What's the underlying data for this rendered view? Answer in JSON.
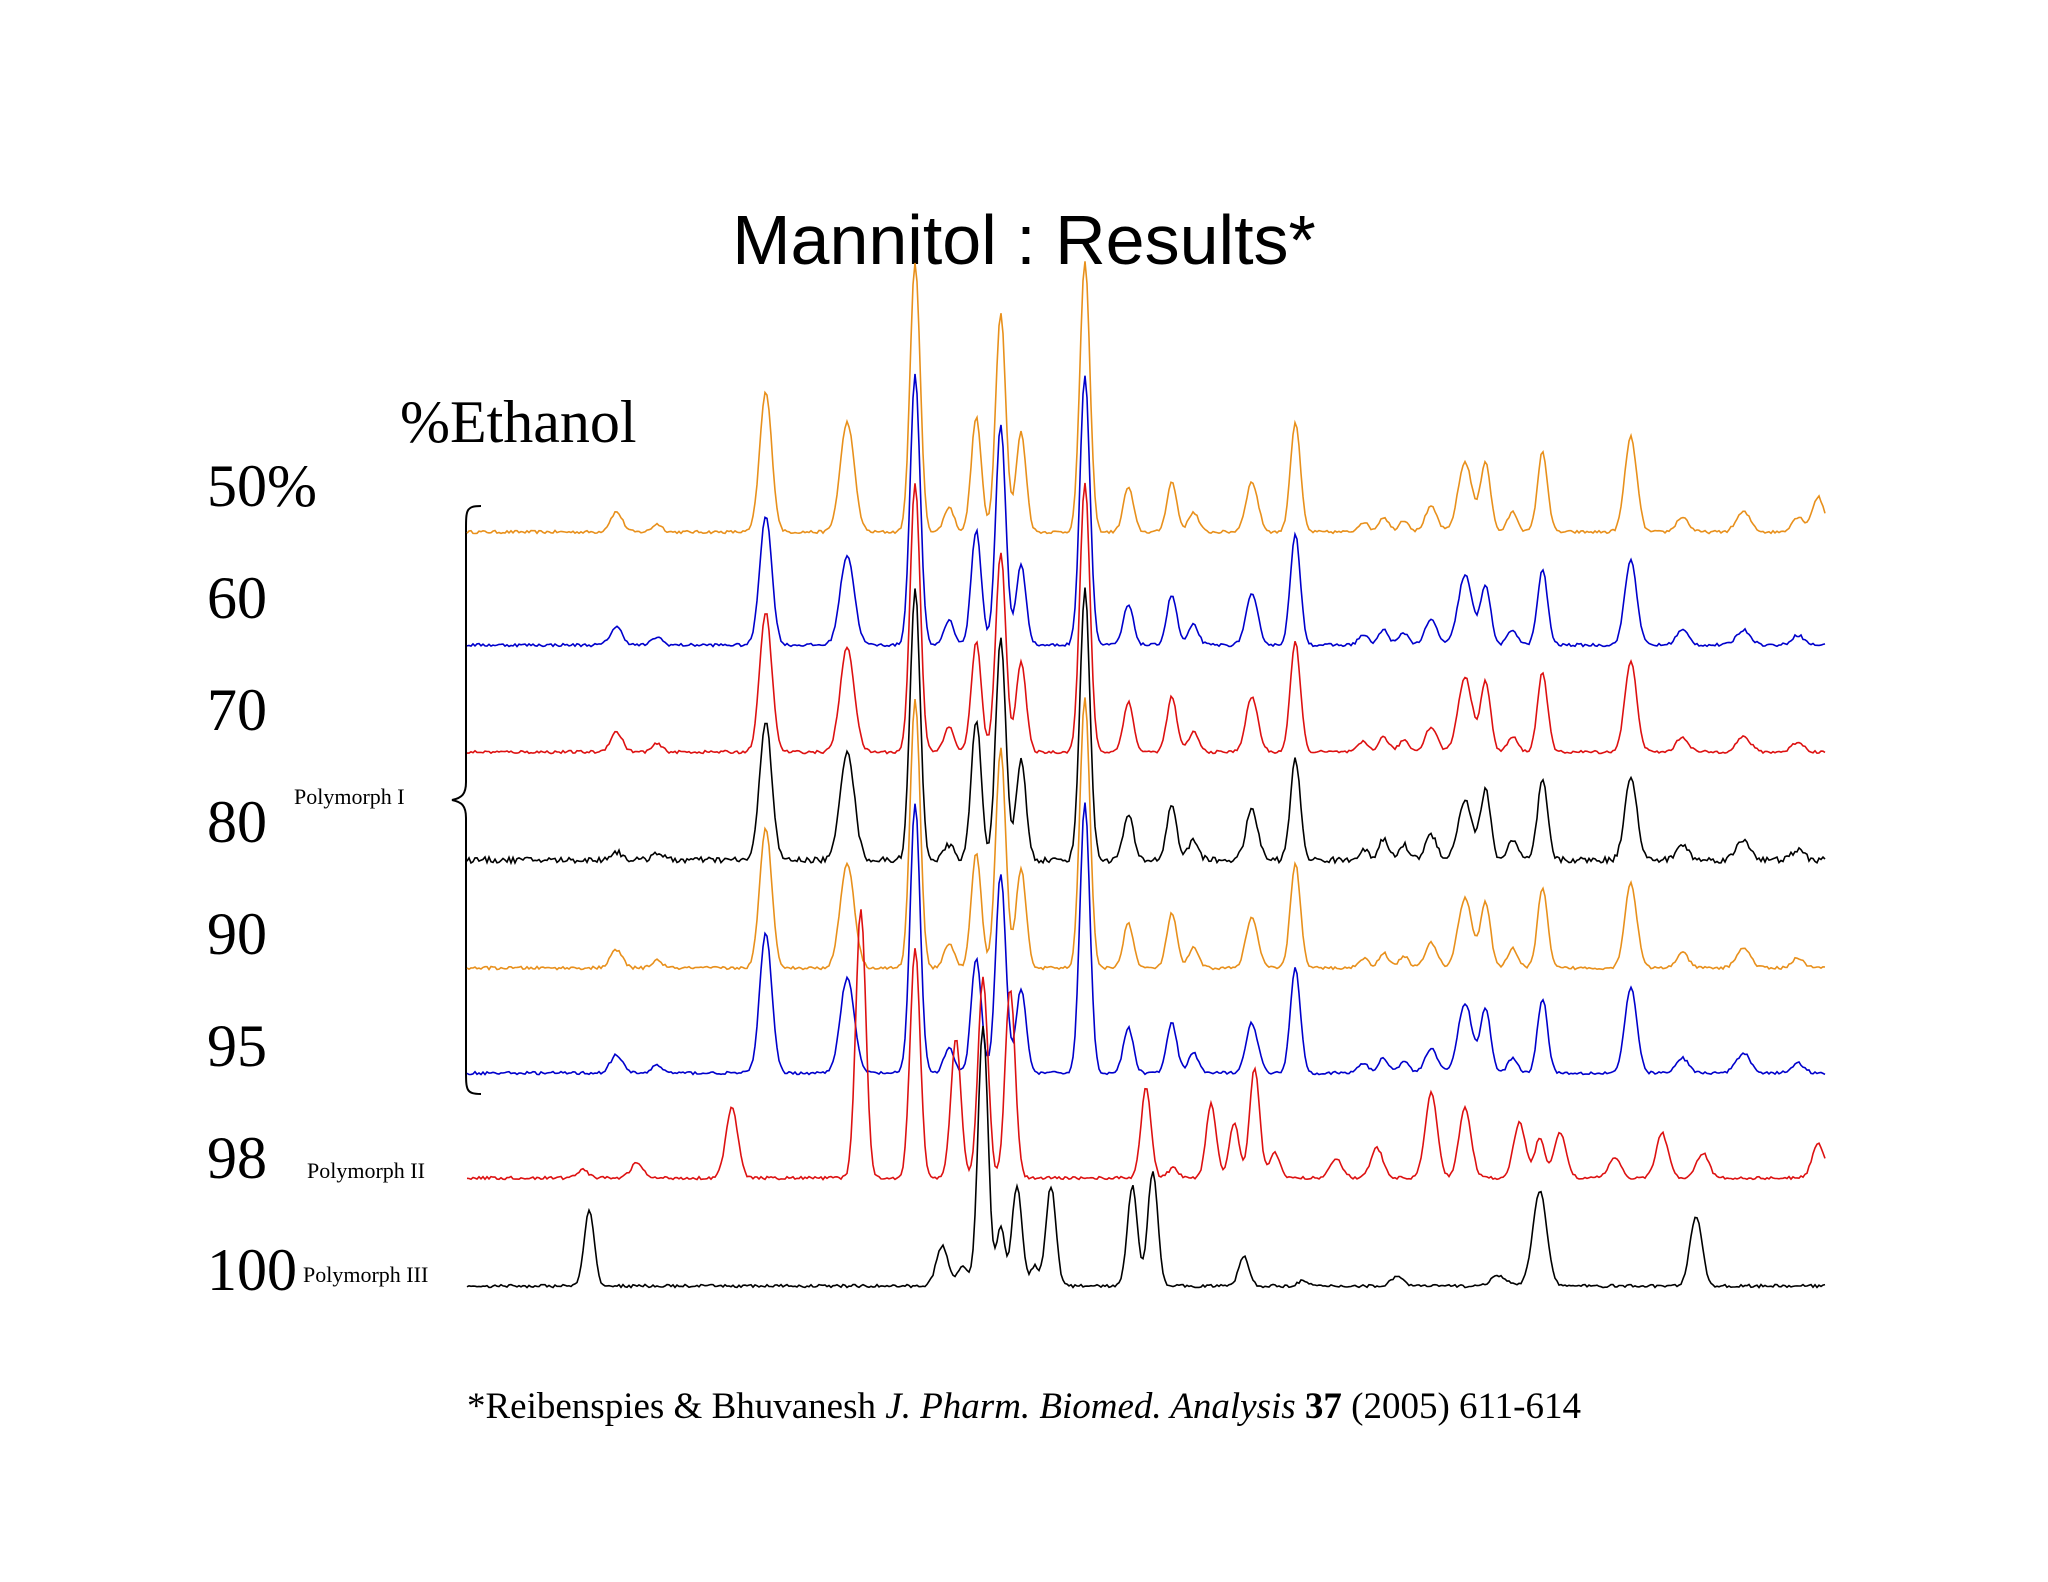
{
  "title": "Mannitol : Results*",
  "ethanol_label": "%Ethanol",
  "citation": {
    "authors": "*Reibenspies & Bhuvanesh",
    "journal": "J. Pharm. Biomed. Analysis",
    "volume": "37",
    "details": "(2005) 611-614"
  },
  "colors": {
    "orange": "#E8901C",
    "blue": "#0000CC",
    "red": "#DD1111",
    "black": "#000000"
  },
  "chart_data": {
    "type": "line",
    "title": "Mannitol : Results*",
    "xlabel": "",
    "ylabel": "",
    "grid": false,
    "legend": "none",
    "group_brace": {
      "label": "Polymorph I",
      "series": [
        "50%",
        "60",
        "70",
        "80",
        "90",
        "95"
      ]
    },
    "series": [
      {
        "label": "50%",
        "polymorph": "",
        "color": "orange",
        "noise": 1.5,
        "peaks": [
          [
            0.11,
            20,
            6
          ],
          [
            0.14,
            8,
            5
          ],
          [
            0.22,
            140,
            6
          ],
          [
            0.28,
            110,
            7
          ],
          [
            0.33,
            270,
            5
          ],
          [
            0.355,
            25,
            5
          ],
          [
            0.375,
            115,
            5
          ],
          [
            0.393,
            220,
            5
          ],
          [
            0.408,
            100,
            5
          ],
          [
            0.455,
            270,
            5
          ],
          [
            0.487,
            45,
            5
          ],
          [
            0.519,
            50,
            5
          ],
          [
            0.535,
            20,
            5
          ],
          [
            0.578,
            50,
            6
          ],
          [
            0.61,
            110,
            5
          ],
          [
            0.66,
            10,
            5
          ],
          [
            0.675,
            15,
            5
          ],
          [
            0.69,
            12,
            5
          ],
          [
            0.71,
            25,
            6
          ],
          [
            0.735,
            70,
            7
          ],
          [
            0.75,
            70,
            5
          ],
          [
            0.77,
            20,
            5
          ],
          [
            0.792,
            80,
            5
          ],
          [
            0.857,
            95,
            6
          ],
          [
            0.895,
            15,
            6
          ],
          [
            0.94,
            20,
            7
          ],
          [
            0.98,
            15,
            6
          ],
          [
            0.995,
            35,
            6
          ]
        ]
      },
      {
        "label": "60",
        "polymorph": "",
        "color": "blue",
        "noise": 1.5,
        "peaks": [
          [
            0.11,
            18,
            6
          ],
          [
            0.14,
            8,
            5
          ],
          [
            0.22,
            130,
            6
          ],
          [
            0.28,
            90,
            7
          ],
          [
            0.33,
            270,
            5
          ],
          [
            0.355,
            25,
            5
          ],
          [
            0.375,
            115,
            5
          ],
          [
            0.393,
            220,
            5
          ],
          [
            0.408,
            80,
            5
          ],
          [
            0.455,
            270,
            5
          ],
          [
            0.487,
            40,
            5
          ],
          [
            0.519,
            50,
            5
          ],
          [
            0.535,
            20,
            5
          ],
          [
            0.578,
            50,
            6
          ],
          [
            0.61,
            110,
            5
          ],
          [
            0.66,
            10,
            5
          ],
          [
            0.675,
            15,
            5
          ],
          [
            0.69,
            12,
            5
          ],
          [
            0.71,
            25,
            6
          ],
          [
            0.735,
            70,
            7
          ],
          [
            0.75,
            60,
            5
          ],
          [
            0.77,
            15,
            5
          ],
          [
            0.792,
            75,
            5
          ],
          [
            0.857,
            85,
            6
          ],
          [
            0.895,
            15,
            6
          ],
          [
            0.94,
            15,
            7
          ],
          [
            0.98,
            10,
            6
          ]
        ]
      },
      {
        "label": "70",
        "polymorph": "",
        "color": "red",
        "noise": 1.5,
        "peaks": [
          [
            0.11,
            20,
            6
          ],
          [
            0.14,
            8,
            5
          ],
          [
            0.22,
            140,
            6
          ],
          [
            0.28,
            105,
            7
          ],
          [
            0.33,
            270,
            5
          ],
          [
            0.355,
            25,
            5
          ],
          [
            0.375,
            110,
            5
          ],
          [
            0.393,
            200,
            5
          ],
          [
            0.408,
            90,
            5
          ],
          [
            0.455,
            270,
            5
          ],
          [
            0.487,
            50,
            5
          ],
          [
            0.519,
            55,
            5
          ],
          [
            0.535,
            20,
            5
          ],
          [
            0.578,
            55,
            6
          ],
          [
            0.61,
            110,
            5
          ],
          [
            0.66,
            10,
            5
          ],
          [
            0.675,
            15,
            5
          ],
          [
            0.69,
            12,
            5
          ],
          [
            0.71,
            25,
            6
          ],
          [
            0.735,
            75,
            7
          ],
          [
            0.75,
            70,
            5
          ],
          [
            0.77,
            15,
            5
          ],
          [
            0.792,
            80,
            5
          ],
          [
            0.857,
            90,
            6
          ],
          [
            0.895,
            15,
            6
          ],
          [
            0.94,
            15,
            7
          ],
          [
            0.98,
            10,
            6
          ]
        ]
      },
      {
        "label": "80",
        "polymorph": "",
        "color": "black",
        "noise": 3,
        "peaks": [
          [
            0.11,
            8,
            6
          ],
          [
            0.14,
            8,
            5
          ],
          [
            0.22,
            140,
            6
          ],
          [
            0.28,
            110,
            7
          ],
          [
            0.33,
            270,
            5
          ],
          [
            0.355,
            15,
            5
          ],
          [
            0.375,
            140,
            5
          ],
          [
            0.393,
            220,
            5
          ],
          [
            0.408,
            100,
            5
          ],
          [
            0.455,
            270,
            5
          ],
          [
            0.487,
            45,
            5
          ],
          [
            0.519,
            55,
            5
          ],
          [
            0.535,
            20,
            5
          ],
          [
            0.578,
            50,
            6
          ],
          [
            0.61,
            100,
            5
          ],
          [
            0.66,
            10,
            5
          ],
          [
            0.675,
            20,
            5
          ],
          [
            0.69,
            15,
            5
          ],
          [
            0.71,
            25,
            6
          ],
          [
            0.735,
            60,
            7
          ],
          [
            0.75,
            70,
            5
          ],
          [
            0.77,
            20,
            5
          ],
          [
            0.792,
            80,
            5
          ],
          [
            0.857,
            85,
            6
          ],
          [
            0.895,
            15,
            6
          ],
          [
            0.94,
            20,
            7
          ],
          [
            0.98,
            10,
            6
          ]
        ]
      },
      {
        "label": "90",
        "polymorph": "",
        "color": "orange",
        "noise": 1.5,
        "peaks": [
          [
            0.11,
            18,
            6
          ],
          [
            0.14,
            8,
            5
          ],
          [
            0.22,
            140,
            6
          ],
          [
            0.28,
            105,
            7
          ],
          [
            0.33,
            270,
            5
          ],
          [
            0.355,
            25,
            5
          ],
          [
            0.375,
            115,
            5
          ],
          [
            0.393,
            220,
            5
          ],
          [
            0.408,
            100,
            5
          ],
          [
            0.455,
            270,
            5
          ],
          [
            0.487,
            45,
            5
          ],
          [
            0.519,
            55,
            5
          ],
          [
            0.535,
            20,
            5
          ],
          [
            0.578,
            50,
            6
          ],
          [
            0.61,
            105,
            5
          ],
          [
            0.66,
            10,
            5
          ],
          [
            0.675,
            15,
            5
          ],
          [
            0.69,
            12,
            5
          ],
          [
            0.71,
            25,
            6
          ],
          [
            0.735,
            70,
            7
          ],
          [
            0.75,
            65,
            5
          ],
          [
            0.77,
            20,
            5
          ],
          [
            0.792,
            80,
            5
          ],
          [
            0.857,
            85,
            6
          ],
          [
            0.895,
            15,
            6
          ],
          [
            0.94,
            20,
            7
          ],
          [
            0.98,
            10,
            6
          ]
        ]
      },
      {
        "label": "95",
        "polymorph": "",
        "color": "blue",
        "noise": 1.5,
        "peaks": [
          [
            0.11,
            18,
            6
          ],
          [
            0.14,
            8,
            5
          ],
          [
            0.22,
            140,
            6
          ],
          [
            0.28,
            95,
            7
          ],
          [
            0.33,
            270,
            5
          ],
          [
            0.355,
            25,
            5
          ],
          [
            0.375,
            115,
            5
          ],
          [
            0.393,
            200,
            5
          ],
          [
            0.408,
            85,
            5
          ],
          [
            0.455,
            270,
            5
          ],
          [
            0.487,
            45,
            5
          ],
          [
            0.519,
            50,
            5
          ],
          [
            0.535,
            20,
            5
          ],
          [
            0.578,
            50,
            6
          ],
          [
            0.61,
            105,
            5
          ],
          [
            0.66,
            10,
            5
          ],
          [
            0.675,
            15,
            5
          ],
          [
            0.69,
            12,
            5
          ],
          [
            0.71,
            25,
            6
          ],
          [
            0.735,
            70,
            7
          ],
          [
            0.75,
            65,
            5
          ],
          [
            0.77,
            15,
            5
          ],
          [
            0.792,
            75,
            5
          ],
          [
            0.857,
            85,
            6
          ],
          [
            0.895,
            15,
            6
          ],
          [
            0.94,
            20,
            7
          ],
          [
            0.98,
            10,
            6
          ]
        ]
      },
      {
        "label": "98",
        "polymorph": "Polymorph II",
        "color": "red",
        "noise": 1.5,
        "peaks": [
          [
            0.085,
            8,
            6
          ],
          [
            0.125,
            15,
            6
          ],
          [
            0.195,
            70,
            6
          ],
          [
            0.29,
            270,
            5
          ],
          [
            0.33,
            230,
            5
          ],
          [
            0.36,
            140,
            5
          ],
          [
            0.38,
            200,
            5
          ],
          [
            0.4,
            190,
            5
          ],
          [
            0.5,
            90,
            5
          ],
          [
            0.52,
            10,
            5
          ],
          [
            0.548,
            75,
            5
          ],
          [
            0.565,
            55,
            5
          ],
          [
            0.58,
            110,
            5
          ],
          [
            0.595,
            25,
            5
          ],
          [
            0.64,
            20,
            6
          ],
          [
            0.67,
            30,
            6
          ],
          [
            0.71,
            85,
            6
          ],
          [
            0.735,
            70,
            6
          ],
          [
            0.775,
            55,
            6
          ],
          [
            0.79,
            40,
            5
          ],
          [
            0.805,
            45,
            6
          ],
          [
            0.845,
            20,
            6
          ],
          [
            0.88,
            45,
            6
          ],
          [
            0.91,
            25,
            6
          ],
          [
            0.995,
            35,
            6
          ]
        ]
      },
      {
        "label": "100",
        "polymorph": "Polymorph III",
        "color": "black",
        "noise": 1.5,
        "peaks": [
          [
            0.09,
            75,
            5
          ],
          [
            0.35,
            40,
            6
          ],
          [
            0.365,
            20,
            5
          ],
          [
            0.38,
            260,
            5
          ],
          [
            0.393,
            60,
            4
          ],
          [
            0.405,
            100,
            5
          ],
          [
            0.418,
            20,
            4
          ],
          [
            0.43,
            100,
            5
          ],
          [
            0.49,
            100,
            5
          ],
          [
            0.505,
            115,
            5
          ],
          [
            0.572,
            30,
            5
          ],
          [
            0.615,
            5,
            5
          ],
          [
            0.685,
            10,
            6
          ],
          [
            0.76,
            10,
            8
          ],
          [
            0.79,
            95,
            7
          ],
          [
            0.905,
            70,
            6
          ]
        ]
      }
    ]
  }
}
